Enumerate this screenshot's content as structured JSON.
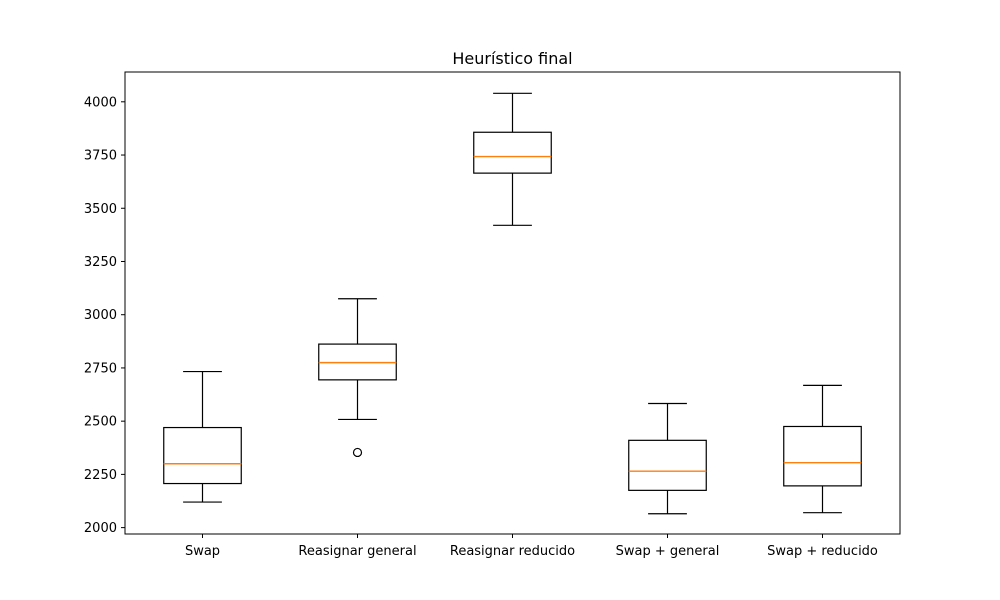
{
  "chart_data": {
    "type": "box",
    "title": "Heurístico final",
    "xlabel": "",
    "ylabel": "",
    "ylim": [
      1970,
      4140
    ],
    "yticks": [
      2000,
      2250,
      2500,
      2750,
      3000,
      3250,
      3500,
      3750,
      4000
    ],
    "grid": false,
    "colors": {
      "box": "#000000",
      "median": "#ff7f0e",
      "background": "#ffffff"
    },
    "boxes": [
      {
        "label": "Swap",
        "whisker_low": 2120,
        "q1": 2207,
        "median": 2300,
        "q3": 2470,
        "whisker_high": 2733,
        "outliers": []
      },
      {
        "label": "Reasignar general",
        "whisker_low": 2508,
        "q1": 2694,
        "median": 2775,
        "q3": 2862,
        "whisker_high": 3075,
        "outliers": [
          2353
        ]
      },
      {
        "label": "Reasignar reducido",
        "whisker_low": 3420,
        "q1": 3665,
        "median": 3743,
        "q3": 3857,
        "whisker_high": 4040,
        "outliers": []
      },
      {
        "label": "Swap + general",
        "whisker_low": 2065,
        "q1": 2175,
        "median": 2265,
        "q3": 2410,
        "whisker_high": 2583,
        "outliers": []
      },
      {
        "label": "Swap + reducido",
        "whisker_low": 2070,
        "q1": 2196,
        "median": 2305,
        "q3": 2475,
        "whisker_high": 2668,
        "outliers": []
      }
    ]
  }
}
